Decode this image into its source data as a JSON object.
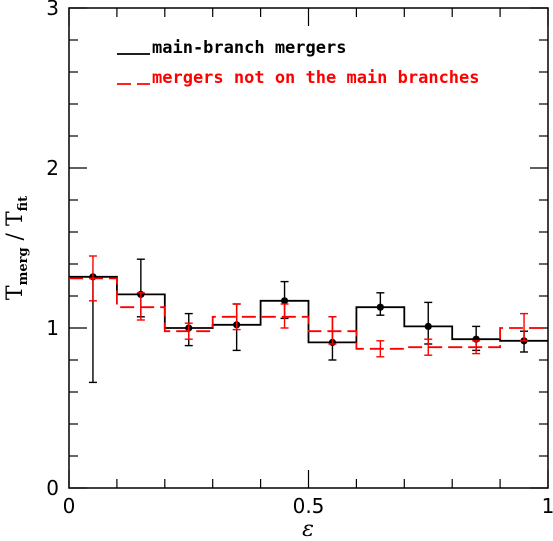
{
  "chart_data": {
    "type": "step",
    "xlabel": "ε",
    "ylabel_parts": {
      "main": "T",
      "sub1": "merg",
      "slash": " / ",
      "main2": "T",
      "sub2": "fit"
    },
    "xlim": [
      0,
      1
    ],
    "ylim": [
      0,
      3
    ],
    "x_ticks": [
      0,
      0.5,
      1
    ],
    "x_tick_labels": [
      "0",
      "0.5",
      "1"
    ],
    "y_ticks": [
      0,
      1,
      2,
      3
    ],
    "y_tick_labels": [
      "0",
      "1",
      "2",
      "3"
    ],
    "x_minor_step": 0.1,
    "y_minor_step": 0.2,
    "bin_edges": [
      0,
      0.1,
      0.2,
      0.3,
      0.4,
      0.5,
      0.6,
      0.7,
      0.8,
      0.9,
      1.0
    ],
    "series": [
      {
        "name": "main-branch mergers",
        "color": "#000000",
        "style": "solid",
        "x": [
          0.05,
          0.15,
          0.25,
          0.35,
          0.45,
          0.55,
          0.65,
          0.75,
          0.85,
          0.95
        ],
        "values": [
          1.32,
          1.21,
          1.0,
          1.02,
          1.17,
          0.91,
          1.13,
          1.01,
          0.93,
          0.92
        ],
        "err_low": [
          0.66,
          0.14,
          0.11,
          0.16,
          0.11,
          0.11,
          0.05,
          0.11,
          0.07,
          0.07
        ],
        "err_high": [
          0.0,
          0.22,
          0.09,
          0.13,
          0.12,
          0.16,
          0.09,
          0.15,
          0.08,
          0.06
        ]
      },
      {
        "name": "mergers not on the main branches",
        "color": "#ff0000",
        "style": "dashed",
        "x": [
          0.05,
          0.15,
          0.25,
          0.35,
          0.45,
          0.55,
          0.65,
          0.75,
          0.85,
          0.95
        ],
        "values": [
          1.31,
          1.13,
          0.98,
          1.07,
          1.07,
          0.98,
          0.87,
          0.88,
          0.88,
          1.0
        ],
        "err_low": [
          0.14,
          0.08,
          0.05,
          0.08,
          0.07,
          0.08,
          0.05,
          0.05,
          0.04,
          0.08
        ],
        "err_high": [
          0.14,
          0.09,
          0.05,
          0.08,
          0.08,
          0.09,
          0.05,
          0.05,
          0.04,
          0.09
        ]
      }
    ],
    "legend": [
      {
        "label": "main-branch mergers",
        "color": "#000000",
        "style": "solid"
      },
      {
        "label": "mergers not on the main branches",
        "color": "#ff0000",
        "style": "dashed"
      }
    ],
    "legend_placement": "top-left"
  }
}
